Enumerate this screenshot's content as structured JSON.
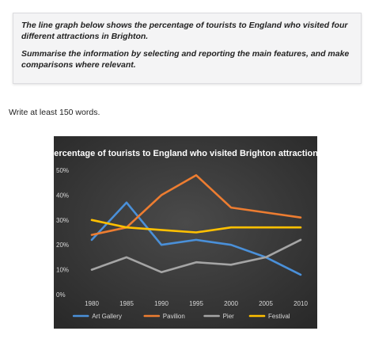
{
  "task": {
    "paragraph1": "The line graph below shows the percentage of tourists to England who visited four different attractions in Brighton.",
    "paragraph2": "Summarise the information by selecting and reporting the main features, and make comparisons where relevant."
  },
  "instructions": "Write at least 150 words.",
  "chart_data": {
    "type": "line",
    "title": "Percentage of tourists to England who visited Brighton attractions",
    "xlabel": "",
    "ylabel": "",
    "x": [
      "1980",
      "1985",
      "1990",
      "1995",
      "2000",
      "2005",
      "2010"
    ],
    "y_ticks": [
      "0%",
      "10%",
      "20%",
      "30%",
      "40%",
      "50%"
    ],
    "ylim": [
      0,
      50
    ],
    "grid": false,
    "legend_position": "bottom",
    "background": "#3c3c3c",
    "series": [
      {
        "name": "Art Gallery",
        "color": "#4a90d9",
        "values": [
          22,
          37,
          20,
          22,
          20,
          15,
          8
        ]
      },
      {
        "name": "Pavilion",
        "color": "#ed7d31",
        "values": [
          24,
          27,
          40,
          48,
          35,
          33,
          31
        ]
      },
      {
        "name": "Pier",
        "color": "#a5a5a5",
        "values": [
          10,
          15,
          9,
          13,
          12,
          15,
          22
        ]
      },
      {
        "name": "Festival",
        "color": "#ffc000",
        "values": [
          30,
          27,
          26,
          25,
          27,
          27,
          27
        ]
      }
    ]
  }
}
